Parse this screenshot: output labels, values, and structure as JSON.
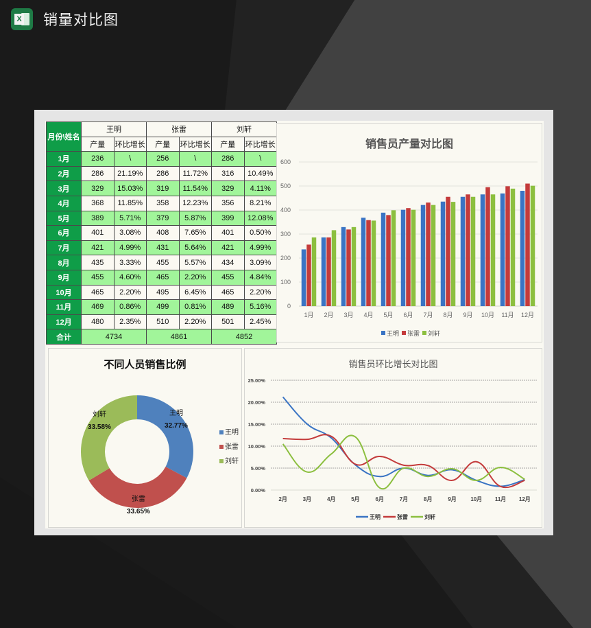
{
  "app": {
    "title": "销量对比图",
    "icon": "excel-icon"
  },
  "table": {
    "corner_label": "月份\\姓名",
    "people": [
      "王明",
      "张雷",
      "刘轩"
    ],
    "sub_headers": [
      "产量",
      "环比增长"
    ],
    "rows": [
      {
        "month": "1月",
        "cells": [
          "236",
          "\\",
          "256",
          "\\",
          "286",
          "\\"
        ]
      },
      {
        "month": "2月",
        "cells": [
          "286",
          "21.19%",
          "286",
          "11.72%",
          "316",
          "10.49%"
        ]
      },
      {
        "month": "3月",
        "cells": [
          "329",
          "15.03%",
          "319",
          "11.54%",
          "329",
          "4.11%"
        ]
      },
      {
        "month": "4月",
        "cells": [
          "368",
          "11.85%",
          "358",
          "12.23%",
          "356",
          "8.21%"
        ]
      },
      {
        "month": "5月",
        "cells": [
          "389",
          "5.71%",
          "379",
          "5.87%",
          "399",
          "12.08%"
        ]
      },
      {
        "month": "6月",
        "cells": [
          "401",
          "3.08%",
          "408",
          "7.65%",
          "401",
          "0.50%"
        ]
      },
      {
        "month": "7月",
        "cells": [
          "421",
          "4.99%",
          "431",
          "5.64%",
          "421",
          "4.99%"
        ]
      },
      {
        "month": "8月",
        "cells": [
          "435",
          "3.33%",
          "455",
          "5.57%",
          "434",
          "3.09%"
        ]
      },
      {
        "month": "9月",
        "cells": [
          "455",
          "4.60%",
          "465",
          "2.20%",
          "455",
          "4.84%"
        ]
      },
      {
        "month": "10月",
        "cells": [
          "465",
          "2.20%",
          "495",
          "6.45%",
          "465",
          "2.20%"
        ]
      },
      {
        "month": "11月",
        "cells": [
          "469",
          "0.86%",
          "499",
          "0.81%",
          "489",
          "5.16%"
        ]
      },
      {
        "month": "12月",
        "cells": [
          "480",
          "2.35%",
          "510",
          "2.20%",
          "501",
          "2.45%"
        ]
      }
    ],
    "total_label": "合计",
    "totals": [
      "4734",
      "4861",
      "4852"
    ]
  },
  "colors": {
    "wang": "#3a74c4",
    "zhang": "#c43b3b",
    "liu": "#8cbf3f",
    "header_green": "#0f9d48",
    "row_green": "#a1f59a"
  },
  "chart_data": [
    {
      "type": "bar",
      "title": "销售员产量对比图",
      "categories": [
        "1月",
        "2月",
        "3月",
        "4月",
        "5月",
        "6月",
        "7月",
        "8月",
        "9月",
        "10月",
        "11月",
        "12月"
      ],
      "series": [
        {
          "name": "王明",
          "values": [
            236,
            286,
            329,
            368,
            389,
            401,
            421,
            435,
            455,
            465,
            469,
            480
          ]
        },
        {
          "name": "张雷",
          "values": [
            256,
            286,
            319,
            358,
            379,
            408,
            431,
            455,
            465,
            495,
            499,
            510
          ]
        },
        {
          "name": "刘轩",
          "values": [
            286,
            316,
            329,
            356,
            399,
            401,
            421,
            434,
            455,
            465,
            489,
            501
          ]
        }
      ],
      "yticks": [
        "0",
        "100",
        "200",
        "300",
        "400",
        "500",
        "600"
      ],
      "ylim": [
        0,
        600
      ],
      "grid": true,
      "legend_position": "bottom"
    },
    {
      "type": "pie",
      "title": "不同人员销售比例",
      "categories": [
        "王明",
        "张雷",
        "刘轩"
      ],
      "values": [
        32.77,
        33.65,
        33.58
      ],
      "labels": [
        "32.77%",
        "33.65%",
        "33.58%"
      ],
      "donut": true,
      "legend_position": "right"
    },
    {
      "type": "line",
      "title": "销售员环比增长对比图",
      "categories": [
        "2月",
        "3月",
        "4月",
        "5月",
        "6月",
        "7月",
        "8月",
        "9月",
        "10月",
        "11月",
        "12月"
      ],
      "series": [
        {
          "name": "王明",
          "values": [
            21.19,
            15.03,
            11.85,
            5.71,
            3.08,
            4.99,
            3.33,
            4.6,
            2.2,
            0.86,
            2.35
          ]
        },
        {
          "name": "张雷",
          "values": [
            11.72,
            11.54,
            12.23,
            5.87,
            7.65,
            5.64,
            5.57,
            2.2,
            6.45,
            0.81,
            2.2
          ]
        },
        {
          "name": "刘轩",
          "values": [
            10.49,
            4.11,
            8.21,
            12.08,
            0.5,
            4.99,
            3.09,
            4.84,
            2.2,
            5.16,
            2.45
          ]
        }
      ],
      "yticks": [
        "0.00%",
        "5.00%",
        "10.00%",
        "15.00%",
        "20.00%",
        "25.00%"
      ],
      "ylim": [
        0,
        25
      ],
      "grid": true,
      "legend_position": "bottom"
    }
  ]
}
